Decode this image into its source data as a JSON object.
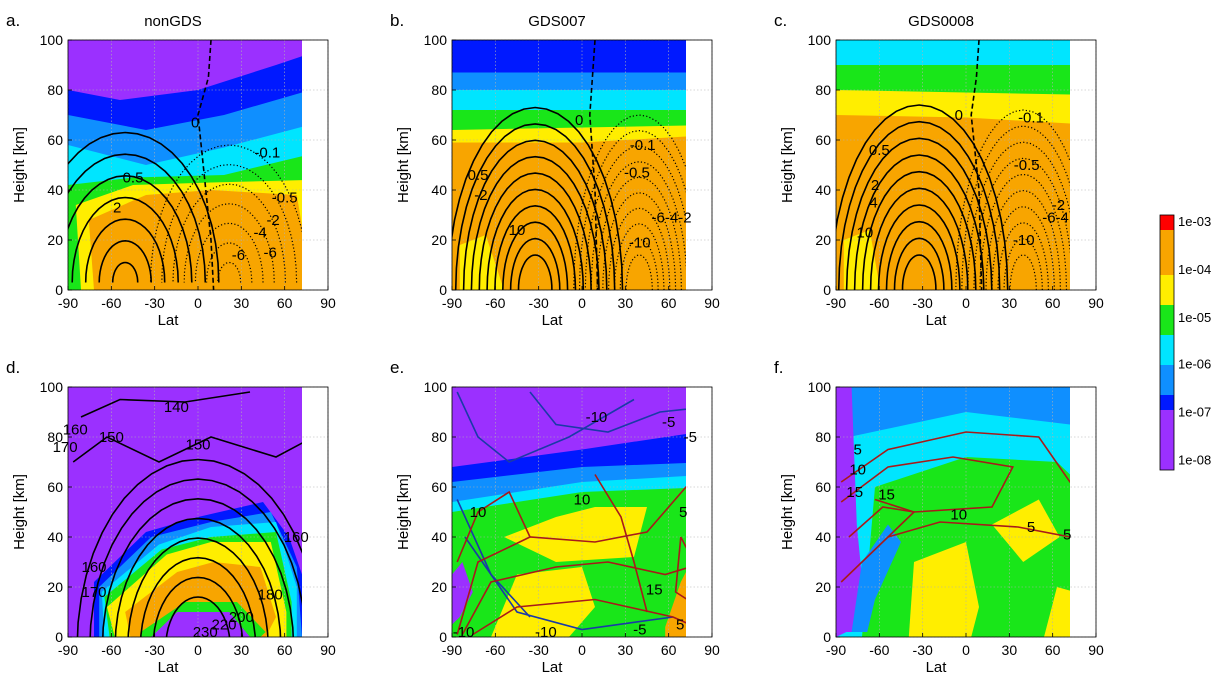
{
  "colorbar": {
    "labels": [
      "1e-03",
      "1e-04",
      "1e-05",
      "1e-06",
      "1e-07",
      "1e-08"
    ],
    "colors": {
      "red": "#ff0000",
      "orange": "#f8a500",
      "yellow": "#ffee00",
      "green": "#19e619",
      "cyan": "#00e5ff",
      "lightblue": "#0f8fff",
      "blue": "#0019ff",
      "purple": "#9b30ff"
    }
  },
  "chart_data": [
    {
      "type": "heatmap",
      "panel": "a.",
      "title": "nonGDS",
      "xlabel": "Lat",
      "ylabel": "Height [km]",
      "xlim": [
        -90,
        90
      ],
      "ylim": [
        0,
        100
      ],
      "xticks": [
        "-90",
        "-60",
        "-30",
        "0",
        "30",
        "60",
        "90"
      ],
      "yticks": [
        "0",
        "20",
        "40",
        "60",
        "80",
        "100"
      ],
      "grid": true,
      "color_scale": "log",
      "data_lat_range": [
        -90,
        72
      ],
      "contour_labels": [
        {
          "text": "0",
          "lat": -2,
          "z": 67
        },
        {
          "text": "0.5",
          "lat": -45,
          "z": 45
        },
        {
          "text": "-0.1",
          "lat": 48,
          "z": 55
        },
        {
          "text": "-0.5",
          "lat": 60,
          "z": 37
        },
        {
          "text": "2",
          "lat": -56,
          "z": 33
        },
        {
          "text": "-2",
          "lat": 52,
          "z": 28
        },
        {
          "text": "-4",
          "lat": 43,
          "z": 23
        },
        {
          "text": "-6",
          "lat": 50,
          "z": 15
        },
        {
          "text": "-6",
          "lat": 28,
          "z": 14
        }
      ]
    },
    {
      "type": "heatmap",
      "panel": "b.",
      "title": "GDS007",
      "xlabel": "Lat",
      "ylabel": "Height [km]",
      "xlim": [
        -90,
        90
      ],
      "ylim": [
        0,
        100
      ],
      "xticks": [
        "-90",
        "-60",
        "-30",
        "0",
        "30",
        "60",
        "90"
      ],
      "yticks": [
        "0",
        "20",
        "40",
        "60",
        "80",
        "100"
      ],
      "grid": true,
      "color_scale": "log",
      "data_lat_range": [
        -90,
        72
      ],
      "contour_labels": [
        {
          "text": "0",
          "lat": -2,
          "z": 68
        },
        {
          "text": "0.5",
          "lat": -72,
          "z": 46
        },
        {
          "text": "-0.1",
          "lat": 42,
          "z": 58
        },
        {
          "text": "-0.5",
          "lat": 38,
          "z": 47
        },
        {
          "text": "-2",
          "lat": -70,
          "z": 38
        },
        {
          "text": "-6-4-2",
          "lat": 62,
          "z": 29
        },
        {
          "text": "10",
          "lat": -45,
          "z": 24
        },
        {
          "text": "-10",
          "lat": 40,
          "z": 19
        }
      ]
    },
    {
      "type": "heatmap",
      "panel": "c.",
      "title": "GDS0008",
      "xlabel": "Lat",
      "ylabel": "Height [km]",
      "xlim": [
        -90,
        90
      ],
      "ylim": [
        0,
        100
      ],
      "xticks": [
        "-90",
        "-60",
        "-30",
        "0",
        "30",
        "60",
        "90"
      ],
      "yticks": [
        "0",
        "20",
        "40",
        "60",
        "80",
        "100"
      ],
      "grid": true,
      "color_scale": "log",
      "data_lat_range": [
        -90,
        72
      ],
      "contour_labels": [
        {
          "text": "0",
          "lat": -5,
          "z": 70
        },
        {
          "text": "-0.1",
          "lat": 45,
          "z": 69
        },
        {
          "text": "0.5",
          "lat": -60,
          "z": 56
        },
        {
          "text": "-0.5",
          "lat": 42,
          "z": 50
        },
        {
          "text": "2",
          "lat": -63,
          "z": 42
        },
        {
          "text": "-2",
          "lat": 64,
          "z": 34
        },
        {
          "text": "4",
          "lat": -64,
          "z": 35
        },
        {
          "text": "-6-4",
          "lat": 62,
          "z": 29
        },
        {
          "text": "10",
          "lat": -70,
          "z": 23
        },
        {
          "text": "-10",
          "lat": 40,
          "z": 20
        }
      ]
    },
    {
      "type": "heatmap",
      "panel": "d.",
      "title": "",
      "xlabel": "Lat",
      "ylabel": "Height [km]",
      "xlim": [
        -90,
        90
      ],
      "ylim": [
        0,
        100
      ],
      "xticks": [
        "-90",
        "-60",
        "-30",
        "0",
        "30",
        "60",
        "90"
      ],
      "yticks": [
        "0",
        "20",
        "40",
        "60",
        "80",
        "100"
      ],
      "grid": true,
      "color_scale": "log",
      "data_lat_range": [
        -90,
        72
      ],
      "contour_labels": [
        {
          "text": "140",
          "lat": -15,
          "z": 92
        },
        {
          "text": "160",
          "lat": -85,
          "z": 83
        },
        {
          "text": "150",
          "lat": -60,
          "z": 80
        },
        {
          "text": "170",
          "lat": -92,
          "z": 76
        },
        {
          "text": "150",
          "lat": 0,
          "z": 77
        },
        {
          "text": "160",
          "lat": 68,
          "z": 40
        },
        {
          "text": "160",
          "lat": -72,
          "z": 28
        },
        {
          "text": "170",
          "lat": -72,
          "z": 18
        },
        {
          "text": "180",
          "lat": 50,
          "z": 17
        },
        {
          "text": "200",
          "lat": 30,
          "z": 8
        },
        {
          "text": "220",
          "lat": 18,
          "z": 5
        },
        {
          "text": "230",
          "lat": 5,
          "z": 2
        }
      ]
    },
    {
      "type": "heatmap",
      "panel": "e.",
      "title": "",
      "xlabel": "Lat",
      "ylabel": "Height [km]",
      "xlim": [
        -90,
        90
      ],
      "ylim": [
        0,
        100
      ],
      "xticks": [
        "-90",
        "-60",
        "-30",
        "0",
        "30",
        "60",
        "90"
      ],
      "yticks": [
        "0",
        "20",
        "40",
        "60",
        "80",
        "100"
      ],
      "grid": true,
      "color_scale": "log",
      "data_lat_range": [
        -90,
        72
      ],
      "contour_labels": [
        {
          "text": "-10",
          "lat": 10,
          "z": 88
        },
        {
          "text": "-5",
          "lat": 60,
          "z": 86
        },
        {
          "text": "-5",
          "lat": 75,
          "z": 80
        },
        {
          "text": "10",
          "lat": 0,
          "z": 55
        },
        {
          "text": "5",
          "lat": 70,
          "z": 50
        },
        {
          "text": "10",
          "lat": -72,
          "z": 50
        },
        {
          "text": "15",
          "lat": 50,
          "z": 19
        },
        {
          "text": "5",
          "lat": 68,
          "z": 5
        },
        {
          "text": "-10",
          "lat": -25,
          "z": 2
        },
        {
          "text": "-5",
          "lat": 40,
          "z": 3
        },
        {
          "text": "-10",
          "lat": -82,
          "z": 2
        }
      ]
    },
    {
      "type": "heatmap",
      "panel": "f.",
      "title": "",
      "xlabel": "Lat",
      "ylabel": "Height [km]",
      "xlim": [
        -90,
        90
      ],
      "ylim": [
        0,
        100
      ],
      "xticks": [
        "-90",
        "-60",
        "-30",
        "0",
        "30",
        "60",
        "90"
      ],
      "yticks": [
        "0",
        "20",
        "40",
        "60",
        "80",
        "100"
      ],
      "grid": true,
      "color_scale": "log",
      "data_lat_range": [
        -90,
        72
      ],
      "contour_labels": [
        {
          "text": "5",
          "lat": -75,
          "z": 75
        },
        {
          "text": "10",
          "lat": -75,
          "z": 67
        },
        {
          "text": "15",
          "lat": -77,
          "z": 58
        },
        {
          "text": "15",
          "lat": -55,
          "z": 57
        },
        {
          "text": "10",
          "lat": -5,
          "z": 49
        },
        {
          "text": "5",
          "lat": 45,
          "z": 44
        },
        {
          "text": "5",
          "lat": 70,
          "z": 41
        }
      ]
    }
  ]
}
